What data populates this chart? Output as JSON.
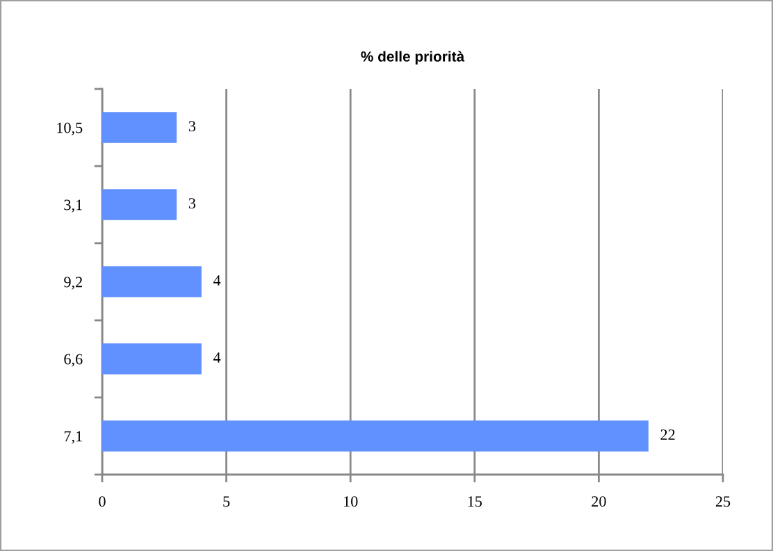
{
  "chart_data": {
    "type": "bar",
    "orientation": "horizontal",
    "title": "% delle priorità",
    "categories": [
      "10,5",
      "3,1",
      "9,2",
      "6,6",
      "7,1"
    ],
    "values": [
      3,
      3,
      4,
      4,
      22
    ],
    "color": "#6190ff",
    "xlim": [
      0,
      25
    ],
    "xticks": [
      0,
      5,
      10,
      15,
      20,
      25
    ],
    "grid": "x",
    "data_labels": true,
    "legend": false
  }
}
